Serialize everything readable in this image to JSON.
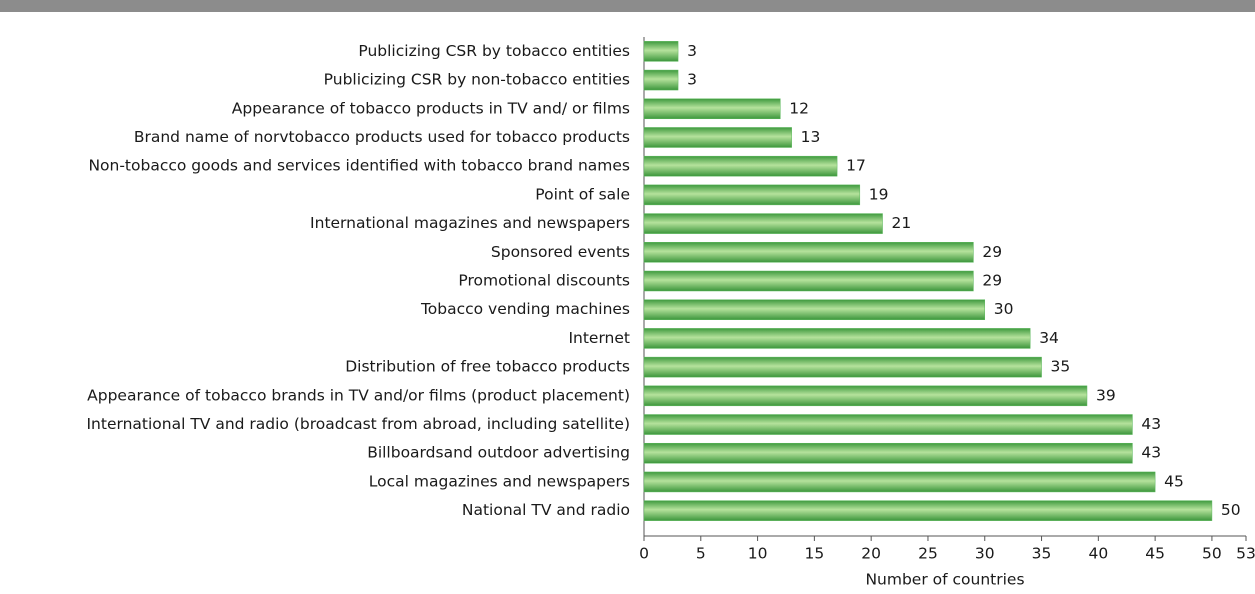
{
  "chart_data": {
    "type": "bar",
    "orientation": "horizontal",
    "x_label": "Number of countries",
    "categories": [
      "Publicizing CSR by tobacco entities",
      "Publicizing CSR by non-tobacco entities",
      "Appearance of tobacco products in TV and/ or films",
      "Brand name of norvtobacco products used for tobacco products",
      "Non-tobacco goods and services identified with tobacco brand names",
      "Point of sale",
      "International magazines and newspapers",
      "Sponsored events",
      "Promotional discounts",
      "Tobacco vending machines",
      "Internet",
      "Distribution of free tobacco products",
      "Appearance of tobacco brands in TV and/or films (product placement)",
      "International TV and radio (broadcast from abroad, including satellite)",
      "Billboardsand outdoor advertising",
      "Local magazines and newspapers",
      "National TV and radio"
    ],
    "values": [
      3,
      3,
      12,
      13,
      17,
      19,
      21,
      29,
      29,
      30,
      34,
      35,
      39,
      43,
      43,
      45,
      50
    ],
    "color": "#5cb85c",
    "xlim": [
      0,
      53
    ],
    "xticks": [
      0,
      5,
      10,
      15,
      20,
      25,
      30,
      35,
      40,
      45,
      50,
      53
    ]
  }
}
